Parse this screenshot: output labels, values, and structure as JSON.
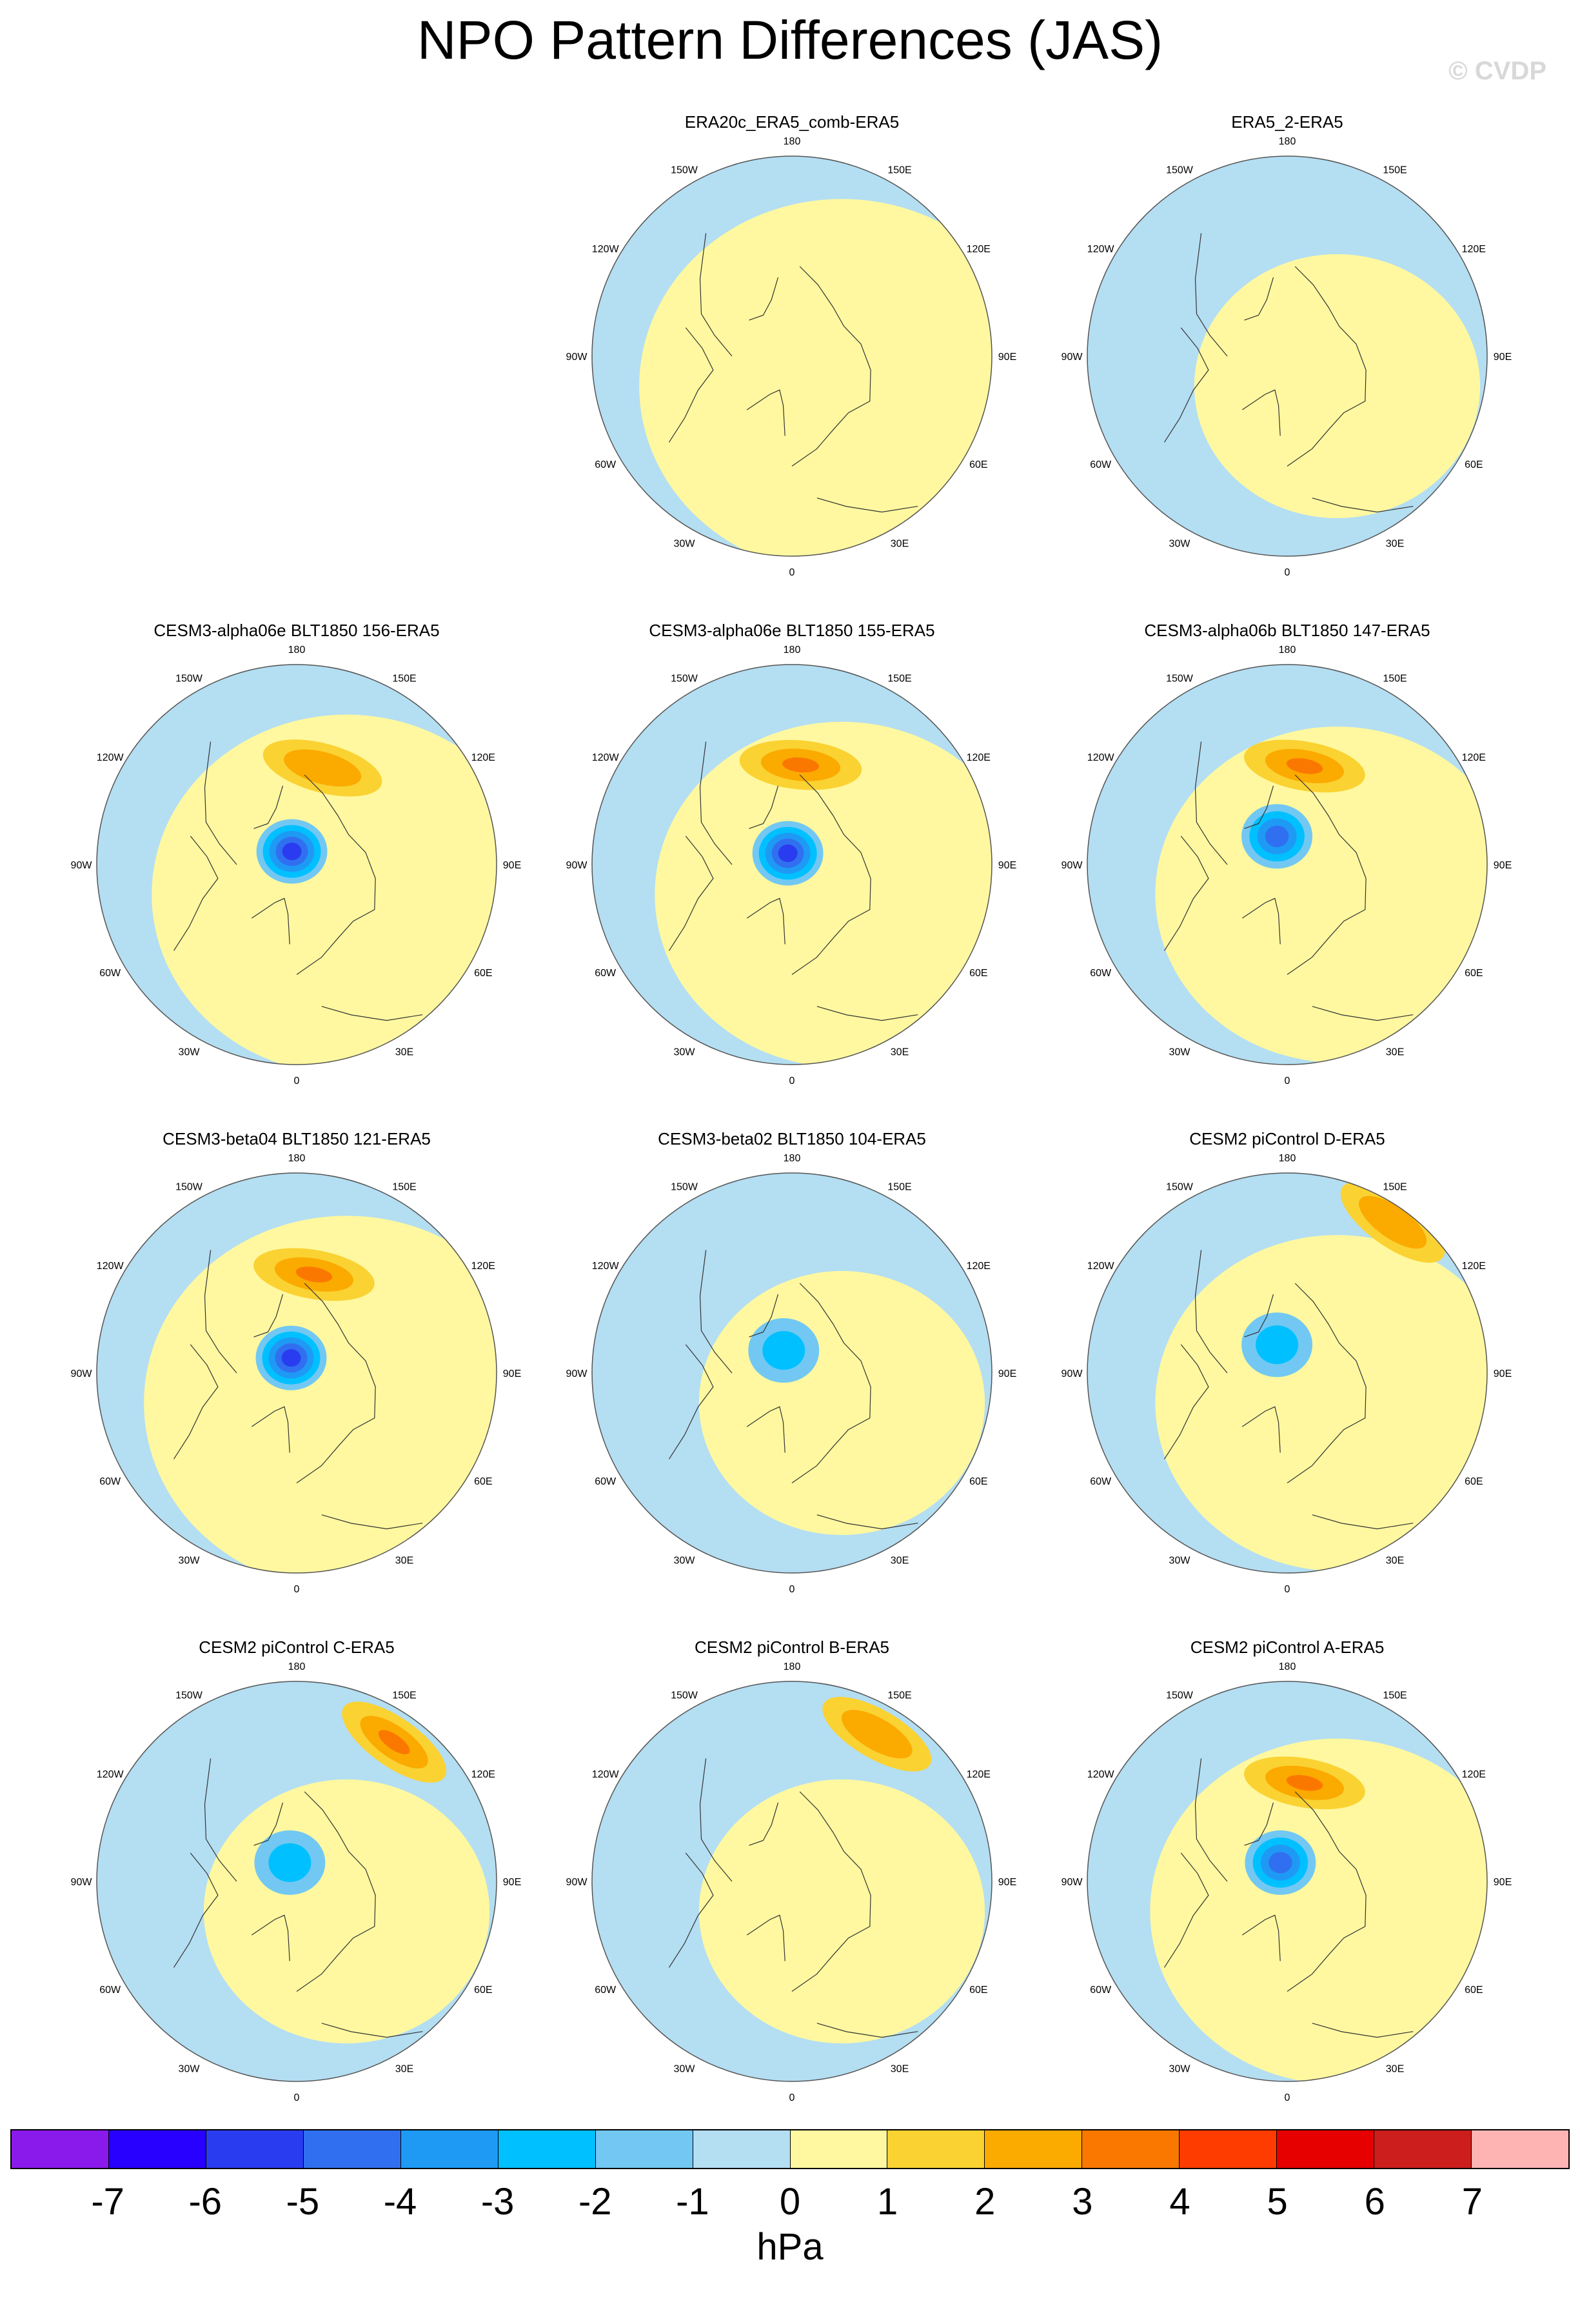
{
  "title": "NPO Pattern Differences (JAS)",
  "copyright": "© CVDP",
  "longitude_labels": [
    "180",
    "150E",
    "120E",
    "90E",
    "60E",
    "30E",
    "0",
    "30W",
    "60W",
    "90W",
    "120W",
    "150W"
  ],
  "panels": [
    {
      "title": "ERA20c_ERA5_comb-ERA5",
      "row": 0,
      "col": 1,
      "low": null,
      "highs": [],
      "bgHigh": 0.78
    },
    {
      "title": "ERA5_2-ERA5",
      "row": 0,
      "col": 2,
      "low": null,
      "highs": [],
      "bgHigh": 0.55
    },
    {
      "title": "CESM3-alpha06e BLT1850 156-ERA5",
      "row": 1,
      "col": 0,
      "low": {
        "lon": 200,
        "r": 0.07,
        "mag": -5
      },
      "highs": [
        {
          "lon": 165,
          "r": 0.5,
          "mag": 2
        }
      ],
      "bgHigh": 0.75
    },
    {
      "title": "CESM3-alpha06e BLT1850 155-ERA5",
      "row": 1,
      "col": 1,
      "low": {
        "lon": 200,
        "r": 0.06,
        "mag": -5
      },
      "highs": [
        {
          "lon": 175,
          "r": 0.5,
          "mag": 3
        }
      ],
      "bgHigh": 0.72
    },
    {
      "title": "CESM3-alpha06b BLT1850 147-ERA5",
      "row": 1,
      "col": 2,
      "low": {
        "lon": 200,
        "r": 0.15,
        "mag": -4
      },
      "highs": [
        {
          "lon": 170,
          "r": 0.5,
          "mag": 3
        }
      ],
      "bgHigh": 0.7
    },
    {
      "title": "CESM3-beta04 BLT1850 121-ERA5",
      "row": 2,
      "col": 0,
      "low": {
        "lon": 200,
        "r": 0.08,
        "mag": -5
      },
      "highs": [
        {
          "lon": 170,
          "r": 0.5,
          "mag": 3
        }
      ],
      "bgHigh": 0.78
    },
    {
      "title": "CESM3-beta02 BLT1850 104-ERA5",
      "row": 2,
      "col": 1,
      "low": {
        "lon": 200,
        "r": 0.12,
        "mag": -2
      },
      "highs": [],
      "bgHigh": 0.55
    },
    {
      "title": "CESM2 piControl D-ERA5",
      "row": 2,
      "col": 2,
      "low": {
        "lon": 200,
        "r": 0.15,
        "mag": -2
      },
      "highs": [
        {
          "lon": 145,
          "r": 0.92,
          "mag": 2
        }
      ],
      "bgHigh": 0.7
    },
    {
      "title": "CESM2 piControl C-ERA5",
      "row": 3,
      "col": 0,
      "low": {
        "lon": 200,
        "r": 0.1,
        "mag": -2
      },
      "highs": [
        {
          "lon": 145,
          "r": 0.85,
          "mag": 3
        }
      ],
      "bgHigh": 0.55
    },
    {
      "title": "CESM2 piControl B-ERA5",
      "row": 3,
      "col": 1,
      "low": null,
      "highs": [
        {
          "lon": 150,
          "r": 0.85,
          "mag": 2
        }
      ],
      "bgHigh": 0.55
    },
    {
      "title": "CESM2 piControl A-ERA5",
      "row": 3,
      "col": 2,
      "low": {
        "lon": 200,
        "r": 0.1,
        "mag": -4
      },
      "highs": [
        {
          "lon": 170,
          "r": 0.5,
          "mag": 3
        }
      ],
      "bgHigh": 0.72
    }
  ],
  "colorbar": {
    "colors": [
      "#8a1aeb",
      "#2800ff",
      "#2a3cf0",
      "#3070f0",
      "#1e9af5",
      "#00c0ff",
      "#72c8f2",
      "#b4def2",
      "#fff8a0",
      "#fad232",
      "#fbaa00",
      "#fb7800",
      "#ff3c00",
      "#e60000",
      "#cd1e1e",
      "#ffb4b4"
    ],
    "labels": [
      "-7",
      "-6",
      "-5",
      "-4",
      "-3",
      "-2",
      "-1",
      "0",
      "1",
      "2",
      "3",
      "4",
      "5",
      "6",
      "7"
    ]
  },
  "units": "hPa"
}
